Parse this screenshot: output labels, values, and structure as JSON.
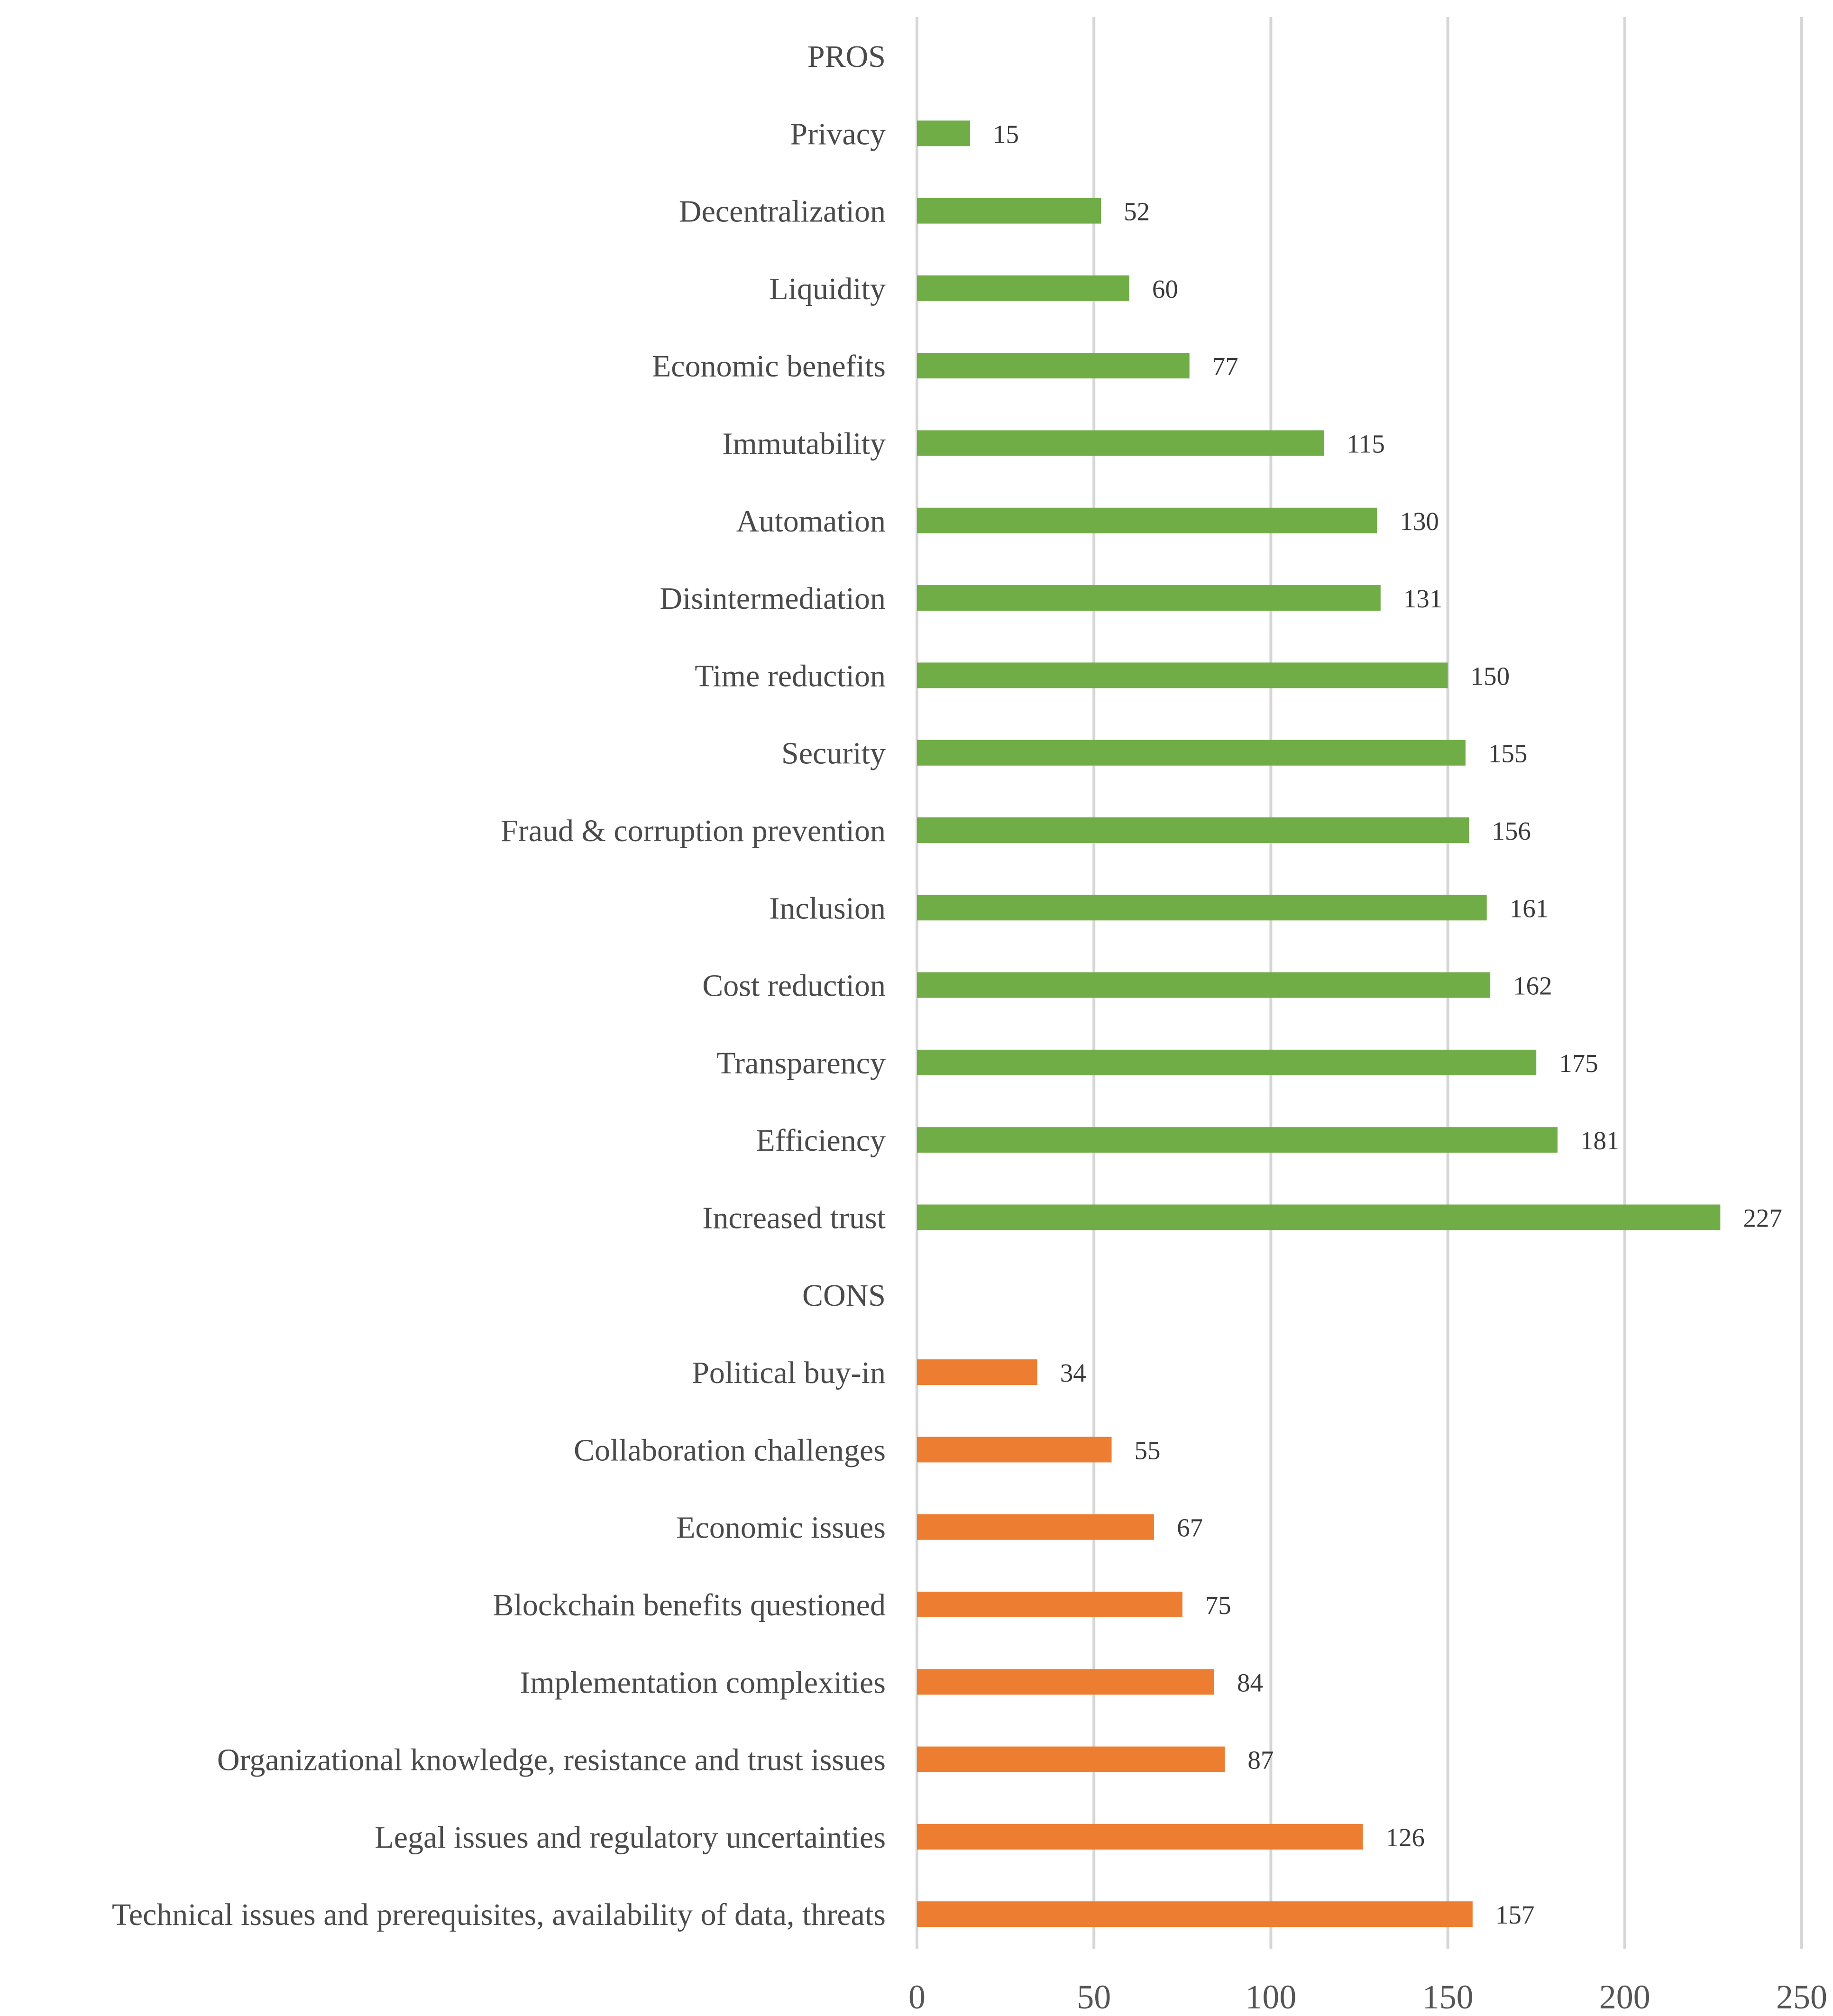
{
  "colors": {
    "pros": "#70ad47",
    "cons": "#ed7d31",
    "grid": "#d6d6d6",
    "text": "#4a4a4a"
  },
  "chart_data": {
    "type": "bar",
    "orientation": "horizontal",
    "title": "",
    "xlabel": "",
    "ylabel": "",
    "xlim": [
      0,
      250
    ],
    "ticks": [
      "0",
      "50",
      "100",
      "150",
      "200",
      "250"
    ],
    "tick_values": [
      0,
      50,
      100,
      150,
      200,
      250
    ],
    "grid": true,
    "rows": [
      {
        "label": "PROS",
        "value": null,
        "group": "header"
      },
      {
        "label": "Privacy",
        "value": 15,
        "group": "pros"
      },
      {
        "label": "Decentralization",
        "value": 52,
        "group": "pros"
      },
      {
        "label": "Liquidity",
        "value": 60,
        "group": "pros"
      },
      {
        "label": "Economic benefits",
        "value": 77,
        "group": "pros"
      },
      {
        "label": "Immutability",
        "value": 115,
        "group": "pros"
      },
      {
        "label": "Automation",
        "value": 130,
        "group": "pros"
      },
      {
        "label": "Disintermediation",
        "value": 131,
        "group": "pros"
      },
      {
        "label": "Time reduction",
        "value": 150,
        "group": "pros"
      },
      {
        "label": "Security",
        "value": 155,
        "group": "pros"
      },
      {
        "label": "Fraud & corruption prevention",
        "value": 156,
        "group": "pros"
      },
      {
        "label": "Inclusion",
        "value": 161,
        "group": "pros"
      },
      {
        "label": "Cost reduction",
        "value": 162,
        "group": "pros"
      },
      {
        "label": "Transparency",
        "value": 175,
        "group": "pros"
      },
      {
        "label": "Efficiency",
        "value": 181,
        "group": "pros"
      },
      {
        "label": "Increased trust",
        "value": 227,
        "group": "pros"
      },
      {
        "label": "CONS",
        "value": null,
        "group": "header"
      },
      {
        "label": "Political buy-in",
        "value": 34,
        "group": "cons"
      },
      {
        "label": "Collaboration challenges",
        "value": 55,
        "group": "cons"
      },
      {
        "label": "Economic issues",
        "value": 67,
        "group": "cons"
      },
      {
        "label": "Blockchain benefits questioned",
        "value": 75,
        "group": "cons"
      },
      {
        "label": "Implementation complexities",
        "value": 84,
        "group": "cons"
      },
      {
        "label": "Organizational knowledge, resistance and trust issues",
        "value": 87,
        "group": "cons"
      },
      {
        "label": "Legal issues and regulatory uncertainties",
        "value": 126,
        "group": "cons"
      },
      {
        "label": "Technical issues and prerequisites, availability of data, threats",
        "value": 157,
        "group": "cons"
      }
    ]
  }
}
